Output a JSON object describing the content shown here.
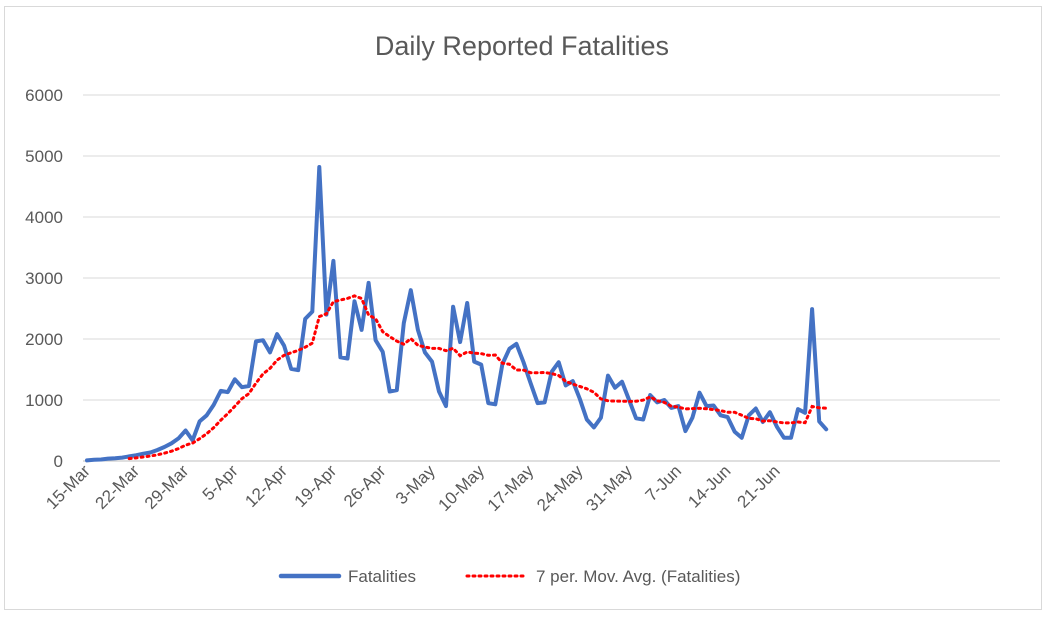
{
  "chart_data": {
    "type": "line",
    "title": "Daily Reported Fatalities",
    "xlabel": "",
    "ylabel": "",
    "ylim": [
      0,
      6000
    ],
    "y_ticks": [
      "0",
      "1000",
      "2000",
      "3000",
      "4000",
      "5000",
      "6000"
    ],
    "x_tick_labels": [
      "15-Mar",
      "22-Mar",
      "29-Mar",
      "5-Apr",
      "12-Apr",
      "19-Apr",
      "26-Apr",
      "3-May",
      "10-May",
      "17-May",
      "24-May",
      "31-May",
      "7-Jun",
      "14-Jun",
      "21-Jun"
    ],
    "grid": true,
    "legend_position": "bottom",
    "colors": {
      "series": "#4472C4",
      "trend": "#FF0000"
    },
    "series": [
      {
        "name": "Fatalities",
        "start_date": "15-Mar",
        "values": [
          10,
          20,
          25,
          40,
          45,
          55,
          75,
          95,
          120,
          140,
          180,
          230,
          290,
          370,
          500,
          340,
          650,
          750,
          920,
          1150,
          1130,
          1340,
          1210,
          1230,
          1960,
          1980,
          1780,
          2080,
          1890,
          1510,
          1490,
          2330,
          2450,
          4820,
          2400,
          3280,
          1700,
          1680,
          2620,
          2150,
          2920,
          1980,
          1790,
          1140,
          1160,
          2260,
          2800,
          2150,
          1780,
          1630,
          1140,
          900,
          2530,
          1950,
          2590,
          1630,
          1580,
          950,
          930,
          1590,
          1840,
          1920,
          1620,
          1280,
          950,
          960,
          1460,
          1620,
          1240,
          1310,
          1020,
          680,
          550,
          710,
          1400,
          1200,
          1300,
          1000,
          700,
          680,
          1080,
          960,
          1000,
          870,
          900,
          490,
          710,
          1120,
          900,
          910,
          750,
          720,
          480,
          380,
          750,
          860,
          640,
          800,
          560,
          380,
          380,
          850,
          790,
          2490,
          650,
          520
        ]
      },
      {
        "name": "7 per. Mov. Avg. (Fatalities)",
        "trendline_of": "Fatalities",
        "period": 7
      }
    ]
  }
}
